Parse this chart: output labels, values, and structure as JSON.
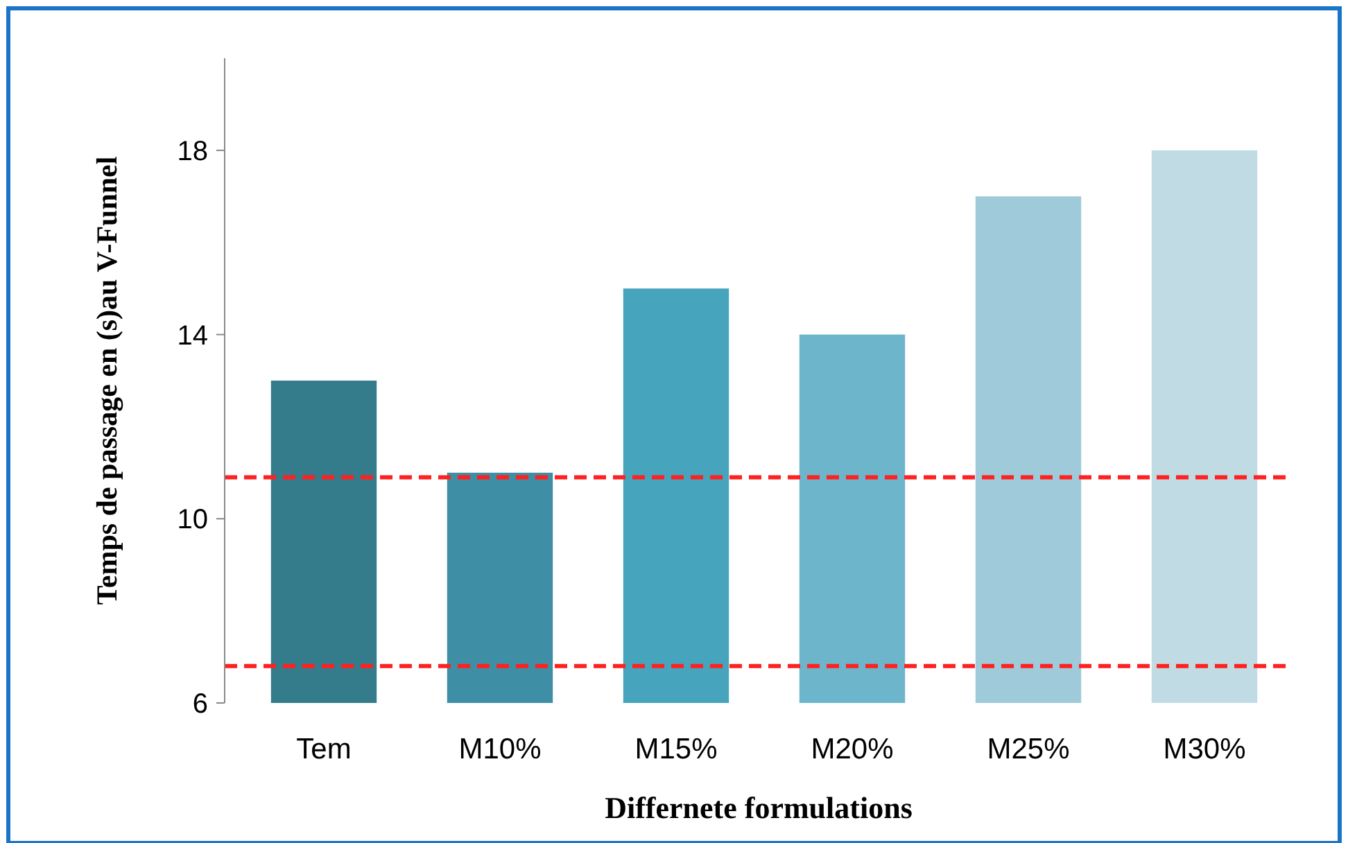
{
  "chart_data": {
    "type": "bar",
    "xlabel": "Differnete formulations",
    "ylabel": "Temps  de passage en (s)au V-Funnel",
    "categories": [
      "Tem",
      "M10%",
      "M15%",
      "M20%",
      "M25%",
      "M30%"
    ],
    "values": [
      13,
      11,
      15,
      14,
      17,
      18
    ],
    "colors": [
      "#347b8c",
      "#3e8fa5",
      "#46a4bc",
      "#6db5cb",
      "#9fcad9",
      "#c0dbe4"
    ],
    "ylim": [
      6,
      20
    ],
    "yticks": [
      6,
      10,
      14,
      18
    ],
    "grid": false,
    "ref_lines": [
      {
        "axis": "y",
        "value": 10.9,
        "color": "#ff2020",
        "line_style": "dashed"
      },
      {
        "axis": "y",
        "value": 6.8,
        "color": "#ff2020",
        "line_style": "dashed"
      }
    ]
  }
}
